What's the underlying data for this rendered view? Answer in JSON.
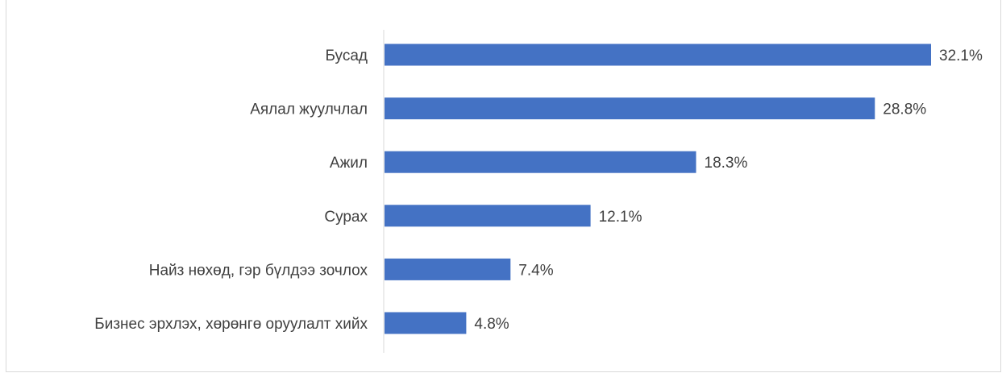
{
  "chart_data": {
    "type": "bar",
    "orientation": "horizontal",
    "categories": [
      "Бусад",
      "Аялал жуулчлал",
      "Ажил",
      "Сурах",
      "Найз нөхөд, гэр бүлдээ зочлох",
      "Бизнес эрхлэх, хөрөнгө оруулалт хийх"
    ],
    "values": [
      32.1,
      28.8,
      18.3,
      12.1,
      7.4,
      4.8
    ],
    "value_labels": [
      "32.1%",
      "28.8%",
      "18.3%",
      "12.1%",
      "7.4%",
      "4.8%"
    ],
    "unit": "%",
    "xlim": [
      0,
      32.1
    ],
    "grid": false,
    "legend": "none",
    "bar_color": "#4472c4",
    "axis_color": "#d9d9d9",
    "label_color": "#404040"
  }
}
